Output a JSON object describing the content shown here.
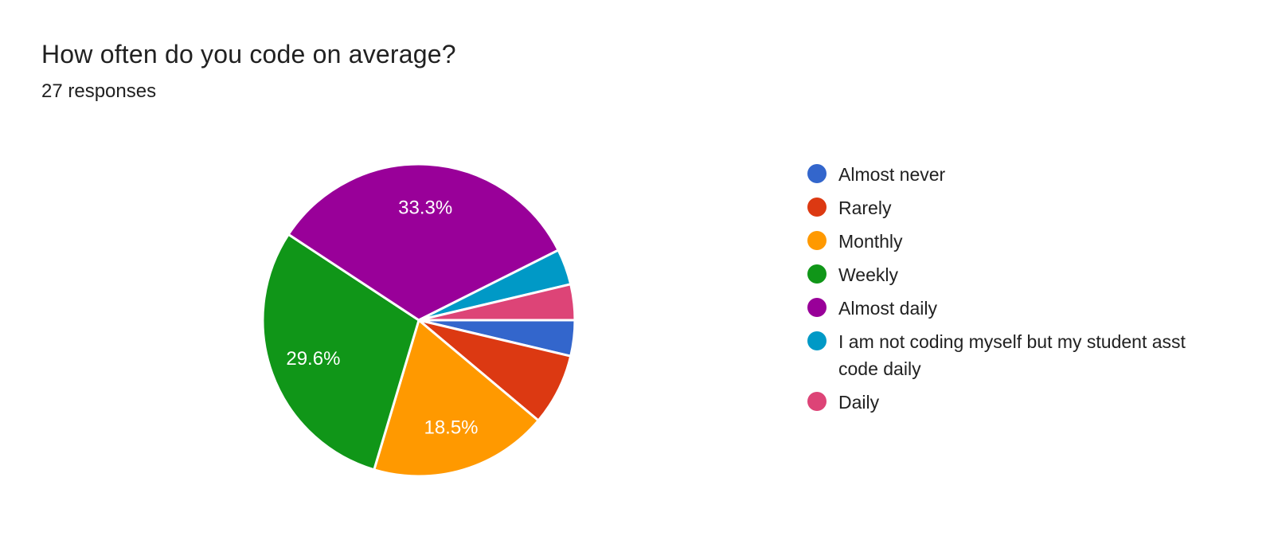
{
  "header": {
    "title": "How often do you code on average?",
    "responses_label": "27 responses"
  },
  "chart_data": {
    "type": "pie",
    "title": "How often do you code on average?",
    "subtitle": "27 responses",
    "total_responses": 27,
    "categories": [
      "Almost never",
      "Rarely",
      "Monthly",
      "Weekly",
      "Almost daily",
      "I am not coding myself but my student asst code daily",
      "Daily"
    ],
    "values": [
      1,
      2,
      5,
      8,
      9,
      1,
      1
    ],
    "percents": [
      3.7,
      7.4,
      18.5,
      29.6,
      33.3,
      3.7,
      3.7
    ],
    "slice_labels": [
      "",
      "",
      "18.5%",
      "29.6%",
      "33.3%",
      "",
      ""
    ],
    "colors": [
      "#3366CC",
      "#DC3912",
      "#FF9900",
      "#109618",
      "#990099",
      "#0099C6",
      "#DD4477"
    ],
    "legend_position": "right",
    "start_angle_deg": 0,
    "direction": "clockwise",
    "slice_label_color": "#FFFFFF",
    "slice_border_color": "#FFFFFF",
    "text_color": "#212121",
    "background": "#FFFFFF"
  }
}
